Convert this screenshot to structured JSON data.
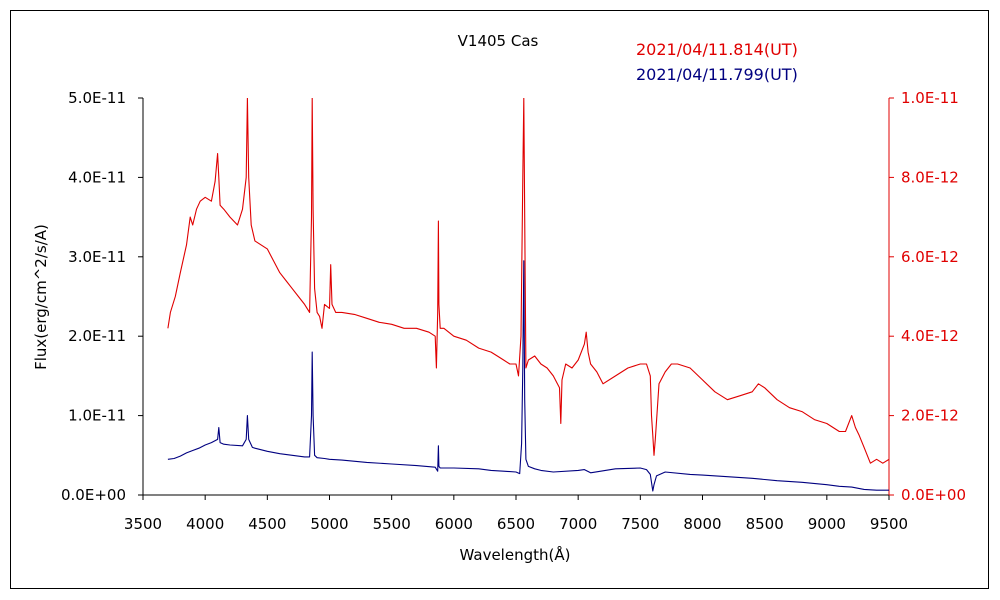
{
  "chart_data": {
    "type": "line",
    "title": "V1405 Cas",
    "xlabel": "Wavelength(Å)",
    "ylabel_left": "Flux(erg/cm^2/s/A)",
    "xlim": [
      3500,
      9500
    ],
    "x_ticks": [
      "3500",
      "4000",
      "4500",
      "5000",
      "5500",
      "6000",
      "6500",
      "7000",
      "7500",
      "8000",
      "8500",
      "9000",
      "9500"
    ],
    "ylim_left": [
      0,
      5e-11
    ],
    "y_ticks_left": [
      "0.0E+00",
      "1.0E-11",
      "2.0E-11",
      "3.0E-11",
      "4.0E-11",
      "5.0E-11"
    ],
    "ylim_right": [
      0,
      1e-11
    ],
    "y_ticks_right": [
      "0.0E+00",
      "2.0E-12",
      "4.0E-12",
      "6.0E-12",
      "8.0E-12",
      "1.0E-11"
    ],
    "grid": false,
    "legend_position": "top-right",
    "series": [
      {
        "name": "2021/04/11.814(UT)",
        "axis": "right",
        "color": "#e00000",
        "x": [
          3700,
          3720,
          3760,
          3800,
          3850,
          3880,
          3900,
          3930,
          3960,
          4000,
          4050,
          4080,
          4100,
          4110,
          4120,
          4150,
          4200,
          4260,
          4300,
          4330,
          4340,
          4350,
          4370,
          4400,
          4450,
          4500,
          4550,
          4600,
          4650,
          4700,
          4750,
          4800,
          4840,
          4855,
          4861,
          4868,
          4880,
          4900,
          4920,
          4940,
          4960,
          5000,
          5010,
          5020,
          5050,
          5100,
          5200,
          5300,
          5400,
          5500,
          5600,
          5700,
          5800,
          5850,
          5860,
          5870,
          5876,
          5880,
          5890,
          5920,
          6000,
          6100,
          6200,
          6300,
          6350,
          6400,
          6450,
          6500,
          6520,
          6540,
          6555,
          6563,
          6570,
          6580,
          6600,
          6650,
          6700,
          6750,
          6800,
          6850,
          6860,
          6870,
          6900,
          6950,
          7000,
          7050,
          7065,
          7080,
          7100,
          7150,
          7200,
          7300,
          7400,
          7500,
          7550,
          7580,
          7590,
          7600,
          7610,
          7620,
          7650,
          7700,
          7750,
          7800,
          7900,
          8000,
          8100,
          8200,
          8300,
          8400,
          8450,
          8500,
          8600,
          8700,
          8800,
          8900,
          9000,
          9100,
          9150,
          9200,
          9230,
          9260,
          9300,
          9350,
          9400,
          9450,
          9500
        ],
        "y": [
          4.2e-12,
          4.6e-12,
          5e-12,
          5.6e-12,
          6.3e-12,
          7e-12,
          6.8e-12,
          7.2e-12,
          7.4e-12,
          7.5e-12,
          7.4e-12,
          7.9e-12,
          8.6e-12,
          8e-12,
          7.3e-12,
          7.2e-12,
          7e-12,
          6.8e-12,
          7.2e-12,
          8e-12,
          1e-11,
          8e-12,
          6.8e-12,
          6.4e-12,
          6.3e-12,
          6.2e-12,
          5.9e-12,
          5.6e-12,
          5.4e-12,
          5.2e-12,
          5e-12,
          4.8e-12,
          4.6e-12,
          7e-12,
          1e-11,
          7.2e-12,
          5.2e-12,
          4.6e-12,
          4.5e-12,
          4.2e-12,
          4.8e-12,
          4.7e-12,
          5.8e-12,
          4.8e-12,
          4.6e-12,
          4.6e-12,
          4.55e-12,
          4.45e-12,
          4.35e-12,
          4.3e-12,
          4.2e-12,
          4.2e-12,
          4.1e-12,
          4e-12,
          3.2e-12,
          4.6e-12,
          6.9e-12,
          4.8e-12,
          4.2e-12,
          4.2e-12,
          4e-12,
          3.9e-12,
          3.7e-12,
          3.6e-12,
          3.5e-12,
          3.4e-12,
          3.3e-12,
          3.3e-12,
          3e-12,
          4e-12,
          8e-12,
          1e-11,
          7e-12,
          3.2e-12,
          3.4e-12,
          3.5e-12,
          3.3e-12,
          3.2e-12,
          3e-12,
          2.7e-12,
          1.8e-12,
          2.9e-12,
          3.3e-12,
          3.2e-12,
          3.4e-12,
          3.8e-12,
          4.1e-12,
          3.6e-12,
          3.3e-12,
          3.1e-12,
          2.8e-12,
          3e-12,
          3.2e-12,
          3.3e-12,
          3.3e-12,
          3e-12,
          2e-12,
          1.5e-12,
          1e-12,
          1.4e-12,
          2.8e-12,
          3.1e-12,
          3.3e-12,
          3.3e-12,
          3.2e-12,
          2.9e-12,
          2.6e-12,
          2.4e-12,
          2.5e-12,
          2.6e-12,
          2.8e-12,
          2.7e-12,
          2.4e-12,
          2.2e-12,
          2.1e-12,
          1.9e-12,
          1.8e-12,
          1.6e-12,
          1.6e-12,
          2e-12,
          1.7e-12,
          1.5e-12,
          1.2e-12,
          8e-13,
          9e-13,
          8e-13,
          9e-13
        ]
      },
      {
        "name": "2021/04/11.799(UT)",
        "axis": "left",
        "color": "#000080",
        "x": [
          3700,
          3750,
          3800,
          3850,
          3900,
          3950,
          4000,
          4050,
          4100,
          4110,
          4120,
          4150,
          4200,
          4300,
          4330,
          4340,
          4350,
          4380,
          4400,
          4500,
          4600,
          4700,
          4800,
          4840,
          4855,
          4861,
          4868,
          4880,
          4900,
          4960,
          5000,
          5100,
          5300,
          5500,
          5700,
          5850,
          5870,
          5876,
          5880,
          5890,
          6000,
          6200,
          6300,
          6400,
          6500,
          6530,
          6545,
          6555,
          6563,
          6570,
          6580,
          6600,
          6650,
          6700,
          6800,
          7000,
          7050,
          7100,
          7300,
          7500,
          7550,
          7580,
          7600,
          7610,
          7630,
          7700,
          7900,
          8000,
          8200,
          8400,
          8600,
          8800,
          9000,
          9100,
          9200,
          9300,
          9400,
          9500
        ],
        "y": [
          4.5e-12,
          4.6e-12,
          4.9e-12,
          5.3e-12,
          5.6e-12,
          5.9e-12,
          6.3e-12,
          6.6e-12,
          7e-12,
          8.5e-12,
          6.6e-12,
          6.4e-12,
          6.3e-12,
          6.2e-12,
          7e-12,
          1e-11,
          7e-12,
          6e-12,
          5.9e-12,
          5.5e-12,
          5.2e-12,
          5e-12,
          4.8e-12,
          4.8e-12,
          1e-11,
          1.8e-11,
          1e-11,
          5e-12,
          4.7e-12,
          4.6e-12,
          4.5e-12,
          4.4e-12,
          4.1e-12,
          3.9e-12,
          3.7e-12,
          3.5e-12,
          3e-12,
          6.2e-12,
          3.6e-12,
          3.4e-12,
          3.4e-12,
          3.3e-12,
          3.1e-12,
          3e-12,
          2.9e-12,
          2.7e-12,
          6.5e-12,
          1.6e-11,
          2.95e-11,
          1.2e-11,
          4.5e-12,
          3.6e-12,
          3.3e-12,
          3.1e-12,
          2.9e-12,
          3.1e-12,
          3.2e-12,
          2.8e-12,
          3.3e-12,
          3.4e-12,
          3.2e-12,
          2.6e-12,
          5e-13,
          1.3e-12,
          2.4e-12,
          2.9e-12,
          2.6e-12,
          2.5e-12,
          2.3e-12,
          2.1e-12,
          1.8e-12,
          1.6e-12,
          1.3e-12,
          1.1e-12,
          1e-12,
          7e-13,
          6e-13,
          6e-13
        ]
      }
    ]
  }
}
